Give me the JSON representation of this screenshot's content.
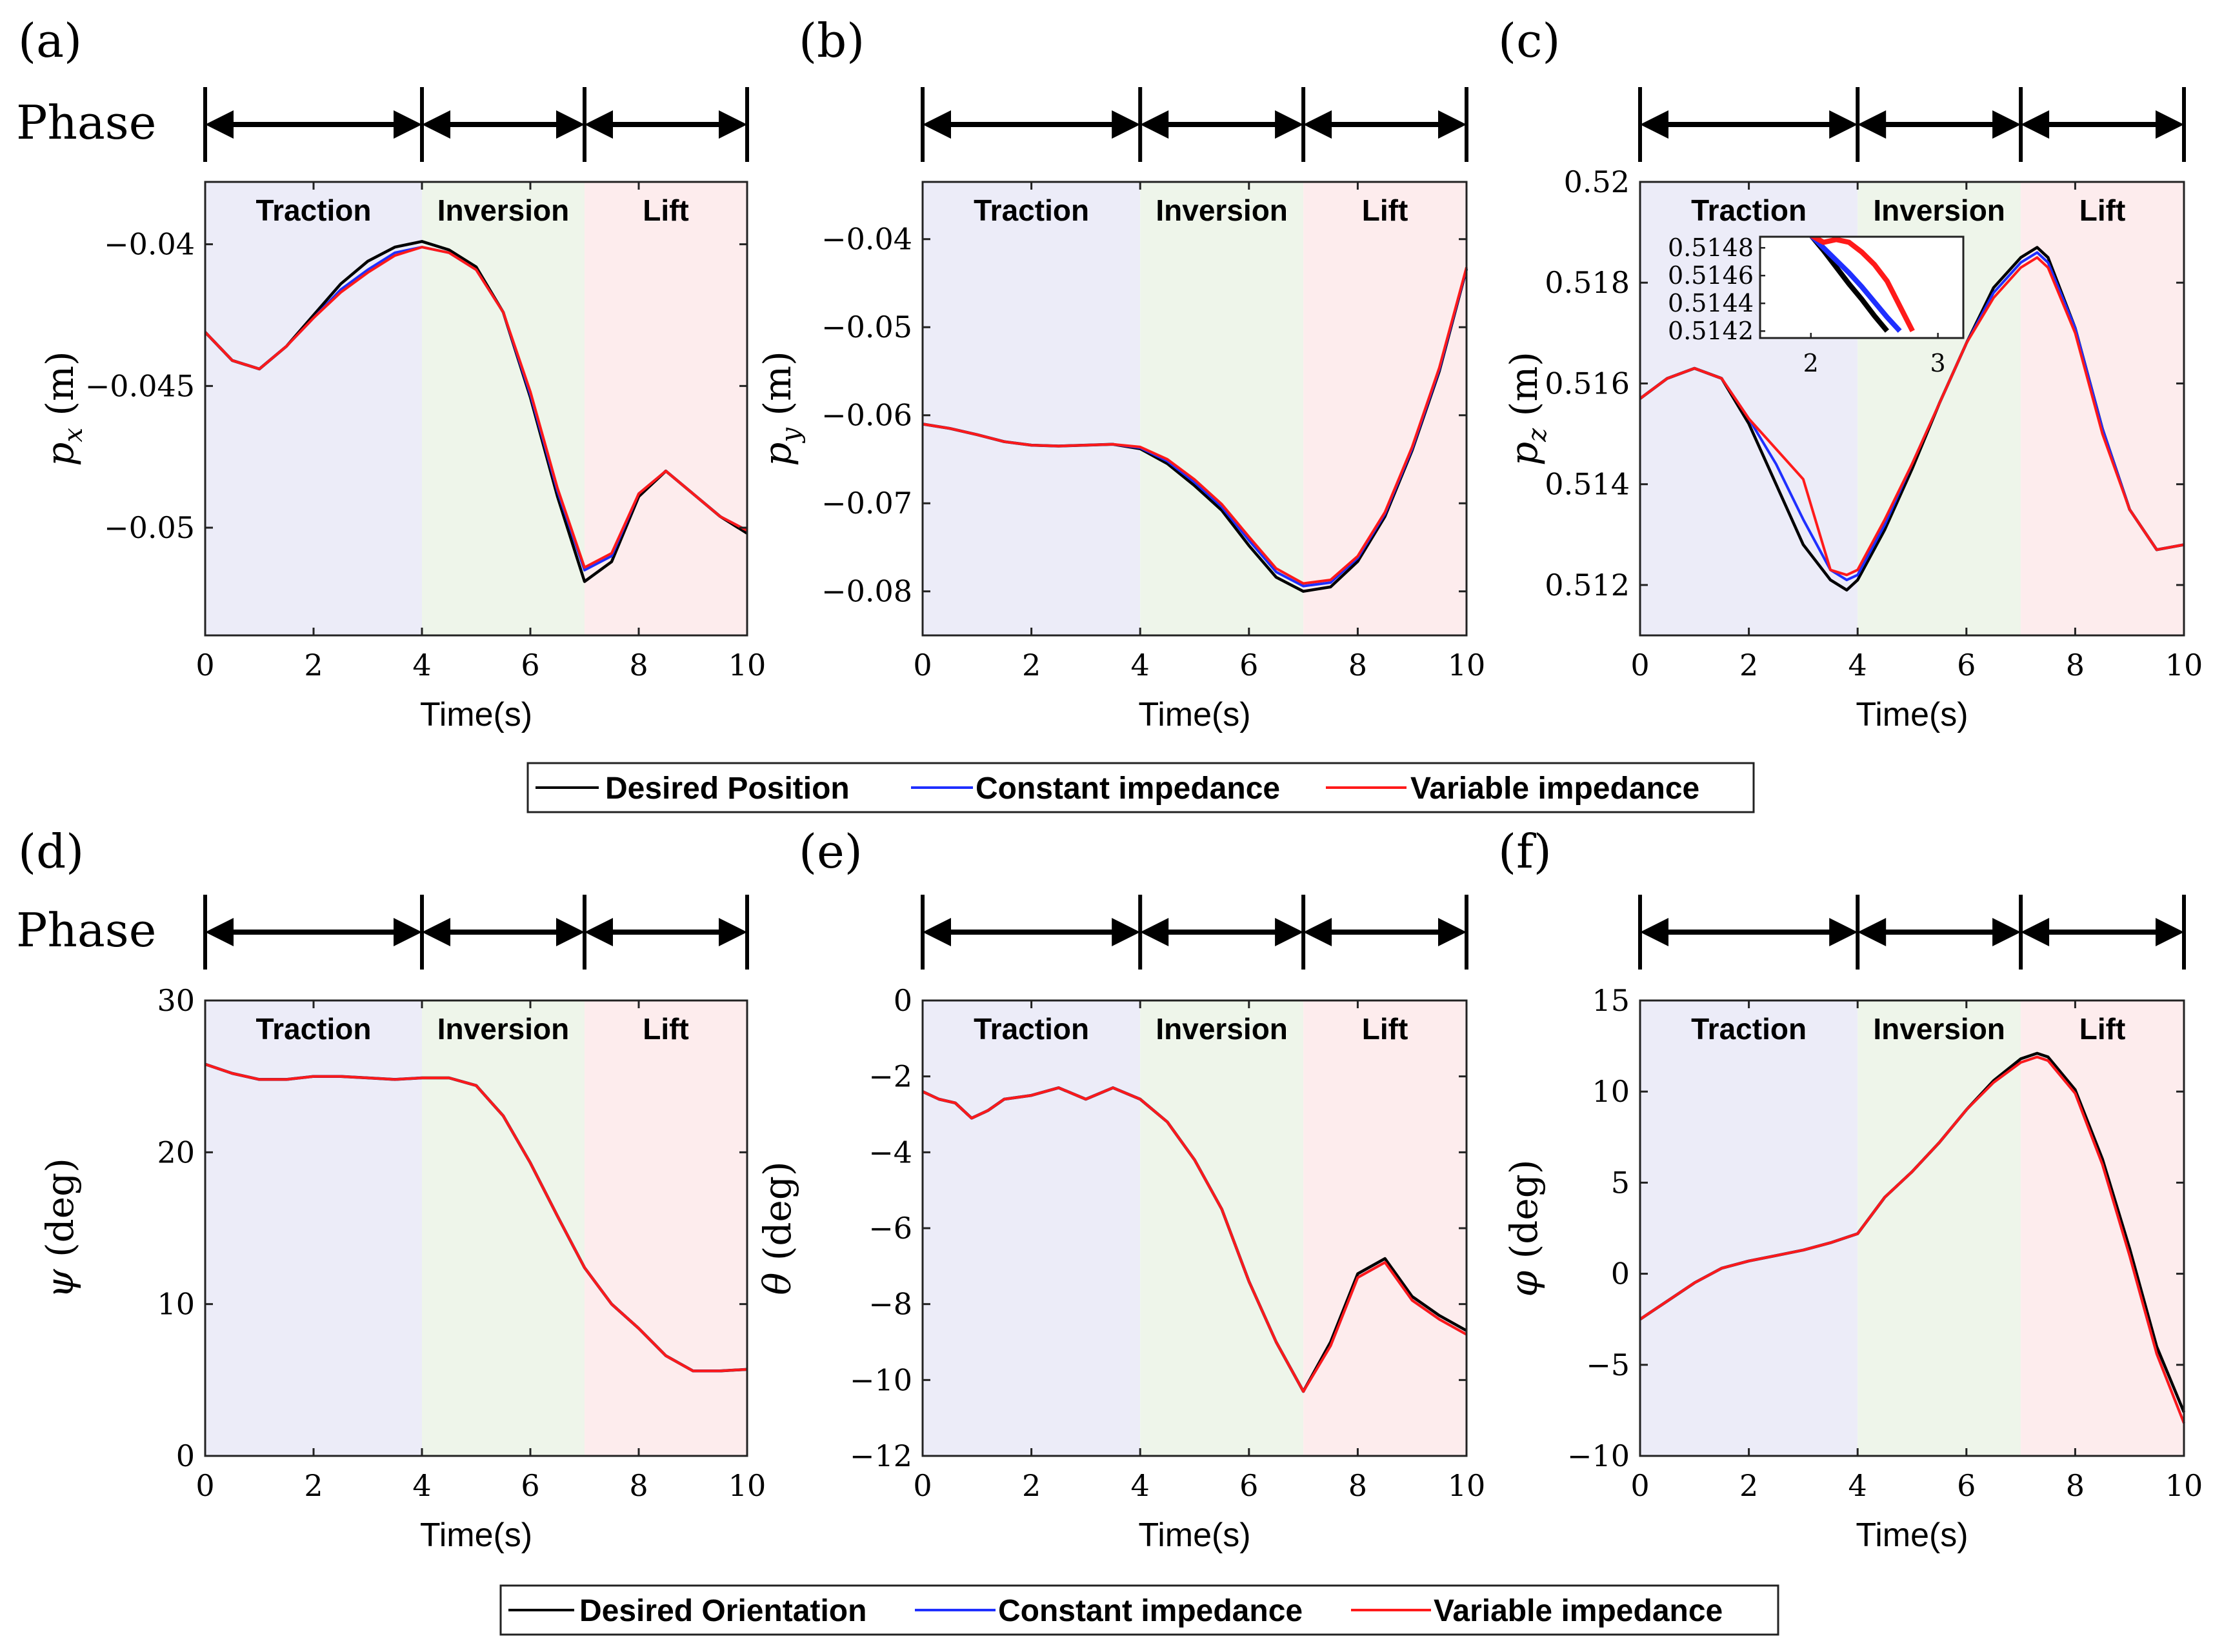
{
  "phase_label": "Phase",
  "colors": {
    "desired": "#000000",
    "constant": "#1f2fff",
    "variable": "#ff1a1a",
    "traction_bg": "#ececf8",
    "inversion_bg": "#eef5ea",
    "lift_bg": "#fdeced"
  },
  "phases": [
    {
      "name": "Traction",
      "start": 0,
      "end": 4
    },
    {
      "name": "Inversion",
      "start": 4,
      "end": 7
    },
    {
      "name": "Lift",
      "start": 7,
      "end": 10
    }
  ],
  "legends": {
    "top": [
      "Desired Position",
      "Constant impedance",
      "Variable impedance"
    ],
    "bottom": [
      "Desired Orientation",
      "Constant impedance",
      "Variable impedance"
    ]
  },
  "chart_data": [
    {
      "id": "a",
      "panel_label": "(a)",
      "type": "line",
      "xlabel": "Time(s)",
      "ylabel": "p_x (m)",
      "xlim": [
        0,
        10
      ],
      "ylim": [
        -0.0538,
        -0.0378
      ],
      "xticks": [
        "0",
        "2",
        "4",
        "6",
        "8",
        "10"
      ],
      "xtick_values": [
        0,
        2,
        4,
        6,
        8,
        10
      ],
      "yticks": [
        "−0.05",
        "−0.045",
        "−0.04"
      ],
      "ytick_values": [
        -0.05,
        -0.045,
        -0.04
      ],
      "phase_labels": [
        "Traction",
        "Inversion",
        "Lift"
      ],
      "x": [
        0,
        0.5,
        1,
        1.5,
        2,
        2.5,
        3,
        3.5,
        4,
        4.5,
        5,
        5.5,
        6,
        6.5,
        7,
        7.5,
        8,
        8.5,
        9,
        9.5,
        10
      ],
      "series": [
        {
          "name": "Desired Position",
          "color": "#000000",
          "values": [
            -0.0431,
            -0.0441,
            -0.0444,
            -0.0436,
            -0.0425,
            -0.0414,
            -0.0406,
            -0.0401,
            -0.0399,
            -0.0402,
            -0.0408,
            -0.0424,
            -0.0454,
            -0.0489,
            -0.0519,
            -0.0512,
            -0.0489,
            -0.048,
            -0.0488,
            -0.0496,
            -0.0502
          ]
        },
        {
          "name": "Constant impedance",
          "color": "#1f2fff",
          "values": [
            -0.0431,
            -0.0441,
            -0.0444,
            -0.0436,
            -0.0426,
            -0.0416,
            -0.0409,
            -0.0403,
            -0.0401,
            -0.0403,
            -0.0409,
            -0.0424,
            -0.0453,
            -0.0487,
            -0.0515,
            -0.051,
            -0.0488,
            -0.048,
            -0.0488,
            -0.0496,
            -0.0501
          ]
        },
        {
          "name": "Variable impedance",
          "color": "#ff1a1a",
          "values": [
            -0.0431,
            -0.0441,
            -0.0444,
            -0.0436,
            -0.0426,
            -0.0417,
            -0.041,
            -0.0404,
            -0.0401,
            -0.0403,
            -0.0409,
            -0.0424,
            -0.0452,
            -0.0486,
            -0.0514,
            -0.0509,
            -0.0488,
            -0.048,
            -0.0488,
            -0.0496,
            -0.0501
          ]
        }
      ]
    },
    {
      "id": "b",
      "panel_label": "(b)",
      "type": "line",
      "xlabel": "Time(s)",
      "ylabel": "p_y (m)",
      "xlim": [
        0,
        10
      ],
      "ylim": [
        -0.085,
        -0.0335
      ],
      "xticks": [
        "0",
        "2",
        "4",
        "6",
        "8",
        "10"
      ],
      "xtick_values": [
        0,
        2,
        4,
        6,
        8,
        10
      ],
      "yticks": [
        "−0.08",
        "−0.07",
        "−0.06",
        "−0.05",
        "−0.04"
      ],
      "ytick_values": [
        -0.08,
        -0.07,
        -0.06,
        -0.05,
        -0.04
      ],
      "phase_labels": [
        "Traction",
        "Inversion",
        "Lift"
      ],
      "x": [
        0,
        0.5,
        1,
        1.5,
        2,
        2.5,
        3,
        3.5,
        4,
        4.5,
        5,
        5.5,
        6,
        6.5,
        7,
        7.5,
        8,
        8.5,
        9,
        9.5,
        10
      ],
      "series": [
        {
          "name": "Desired Position",
          "color": "#000000",
          "values": [
            -0.061,
            -0.0615,
            -0.0622,
            -0.063,
            -0.0634,
            -0.0635,
            -0.0634,
            -0.0633,
            -0.0638,
            -0.0655,
            -0.068,
            -0.0708,
            -0.0748,
            -0.0784,
            -0.08,
            -0.0795,
            -0.0766,
            -0.0715,
            -0.064,
            -0.055,
            -0.0434
          ]
        },
        {
          "name": "Constant impedance",
          "color": "#1f2fff",
          "values": [
            -0.061,
            -0.0615,
            -0.0622,
            -0.063,
            -0.0634,
            -0.0635,
            -0.0634,
            -0.0633,
            -0.0637,
            -0.0652,
            -0.0676,
            -0.0704,
            -0.0742,
            -0.0778,
            -0.0794,
            -0.079,
            -0.0762,
            -0.0712,
            -0.0638,
            -0.0548,
            -0.0433
          ]
        },
        {
          "name": "Variable impedance",
          "color": "#ff1a1a",
          "values": [
            -0.061,
            -0.0615,
            -0.0622,
            -0.063,
            -0.0634,
            -0.0635,
            -0.0634,
            -0.0633,
            -0.0636,
            -0.065,
            -0.0673,
            -0.0701,
            -0.0738,
            -0.0774,
            -0.0791,
            -0.0787,
            -0.076,
            -0.071,
            -0.0636,
            -0.0546,
            -0.0432
          ]
        }
      ]
    },
    {
      "id": "c",
      "panel_label": "(c)",
      "type": "line",
      "xlabel": "Time(s)",
      "ylabel": "p_z (m)",
      "xlim": [
        0,
        10
      ],
      "ylim": [
        0.511,
        0.52
      ],
      "xticks": [
        "0",
        "2",
        "4",
        "6",
        "8",
        "10"
      ],
      "xtick_values": [
        0,
        2,
        4,
        6,
        8,
        10
      ],
      "yticks": [
        "0.512",
        "0.514",
        "0.516",
        "0.518",
        "0.52"
      ],
      "ytick_values": [
        0.512,
        0.514,
        0.516,
        0.518,
        0.52
      ],
      "phase_labels": [
        "Traction",
        "Inversion",
        "Lift"
      ],
      "x": [
        0,
        0.5,
        1,
        1.5,
        2,
        2.5,
        3,
        3.5,
        3.8,
        4,
        4.5,
        5,
        5.5,
        6,
        6.5,
        7,
        7.3,
        7.5,
        8,
        8.5,
        9,
        9.5,
        10
      ],
      "series": [
        {
          "name": "Desired Position",
          "color": "#000000",
          "values": [
            0.5157,
            0.5161,
            0.5163,
            0.5161,
            0.5152,
            0.514,
            0.5128,
            0.5121,
            0.5119,
            0.5121,
            0.5131,
            0.5143,
            0.5156,
            0.5168,
            0.5179,
            0.5185,
            0.5187,
            0.5185,
            0.5171,
            0.5151,
            0.5135,
            0.5127,
            0.5128
          ]
        },
        {
          "name": "Constant impedance",
          "color": "#1f2fff",
          "values": [
            0.5157,
            0.5161,
            0.5163,
            0.5161,
            0.5153,
            0.5144,
            0.5133,
            0.5123,
            0.5121,
            0.5122,
            0.5132,
            0.5144,
            0.5156,
            0.5168,
            0.5178,
            0.5184,
            0.5186,
            0.5184,
            0.5171,
            0.5151,
            0.5135,
            0.5127,
            0.5128
          ]
        },
        {
          "name": "Variable impedance",
          "color": "#ff1a1a",
          "values": [
            0.5157,
            0.5161,
            0.5163,
            0.5161,
            0.5153,
            0.5147,
            0.5141,
            0.5123,
            0.5122,
            0.5123,
            0.5133,
            0.5144,
            0.5156,
            0.5168,
            0.5177,
            0.5183,
            0.5185,
            0.5183,
            0.517,
            0.515,
            0.5135,
            0.5127,
            0.5128
          ]
        }
      ],
      "inset": {
        "xlim": [
          1.6,
          3.2
        ],
        "ylim": [
          0.51415,
          0.51488
        ],
        "xticks": [
          "2",
          "3"
        ],
        "xtick_values": [
          2,
          3
        ],
        "yticks": [
          "0.5142",
          "0.5144",
          "0.5146",
          "0.5148"
        ],
        "ytick_values": [
          0.5142,
          0.5144,
          0.5146,
          0.5148
        ],
        "x": [
          2,
          2.1,
          2.2,
          2.3,
          2.4,
          2.5,
          2.6,
          2.7,
          2.8
        ],
        "series": [
          {
            "name": "Desired Position",
            "color": "#000000",
            "values": [
              0.51489,
              0.51478,
              0.51466,
              0.51454,
              0.51443,
              0.51431,
              0.5142,
              null,
              null
            ]
          },
          {
            "name": "Constant impedance",
            "color": "#1f2fff",
            "values": [
              0.51489,
              0.5148,
              0.51471,
              0.51462,
              0.51452,
              0.51441,
              0.5143,
              0.5142,
              null
            ]
          },
          {
            "name": "Variable impedance",
            "color": "#ff1a1a",
            "values": [
              0.51489,
              0.51484,
              0.51486,
              0.51484,
              0.51477,
              0.51468,
              0.51456,
              0.51438,
              0.5142
            ]
          }
        ]
      }
    },
    {
      "id": "d",
      "panel_label": "(d)",
      "type": "line",
      "xlabel": "Time(s)",
      "ylabel": "ψ (deg)",
      "xlim": [
        0,
        10
      ],
      "ylim": [
        0,
        30
      ],
      "xticks": [
        "0",
        "2",
        "4",
        "6",
        "8",
        "10"
      ],
      "xtick_values": [
        0,
        2,
        4,
        6,
        8,
        10
      ],
      "yticks": [
        "0",
        "10",
        "20",
        "30"
      ],
      "ytick_values": [
        0,
        10,
        20,
        30
      ],
      "phase_labels": [
        "Traction",
        "Inversion",
        "Lift"
      ],
      "x": [
        0,
        0.5,
        1,
        1.5,
        2,
        2.5,
        3,
        3.5,
        4,
        4.5,
        5,
        5.5,
        6,
        6.5,
        7,
        7.5,
        8,
        8.5,
        9,
        9.5,
        10
      ],
      "series": [
        {
          "name": "Desired Orientation",
          "color": "#000000",
          "values": [
            25.8,
            25.2,
            24.8,
            24.8,
            25.0,
            25.0,
            24.9,
            24.8,
            24.9,
            24.9,
            24.4,
            22.4,
            19.3,
            15.8,
            12.4,
            10.0,
            8.4,
            6.6,
            5.6,
            5.6,
            5.7
          ]
        },
        {
          "name": "Constant impedance",
          "color": "#1f2fff",
          "values": [
            25.8,
            25.2,
            24.8,
            24.8,
            25.0,
            25.0,
            24.9,
            24.8,
            24.9,
            24.9,
            24.4,
            22.4,
            19.3,
            15.8,
            12.4,
            10.0,
            8.4,
            6.6,
            5.6,
            5.6,
            5.7
          ]
        },
        {
          "name": "Variable impedance",
          "color": "#ff1a1a",
          "values": [
            25.8,
            25.2,
            24.8,
            24.8,
            25.0,
            25.0,
            24.9,
            24.8,
            24.9,
            24.9,
            24.4,
            22.4,
            19.3,
            15.8,
            12.4,
            10.0,
            8.4,
            6.6,
            5.6,
            5.6,
            5.7
          ]
        }
      ]
    },
    {
      "id": "e",
      "panel_label": "(e)",
      "type": "line",
      "xlabel": "Time(s)",
      "ylabel": "θ (deg)",
      "xlim": [
        0,
        10
      ],
      "ylim": [
        -12,
        0
      ],
      "xticks": [
        "0",
        "2",
        "4",
        "6",
        "8",
        "10"
      ],
      "xtick_values": [
        0,
        2,
        4,
        6,
        8,
        10
      ],
      "yticks": [
        "−12",
        "−10",
        "−8",
        "−6",
        "−4",
        "−2",
        "0"
      ],
      "ytick_values": [
        -12,
        -10,
        -8,
        -6,
        -4,
        -2,
        0
      ],
      "phase_labels": [
        "Traction",
        "Inversion",
        "Lift"
      ],
      "x": [
        0,
        0.3,
        0.6,
        0.9,
        1.2,
        1.5,
        2,
        2.5,
        3,
        3.5,
        4,
        4.5,
        5,
        5.5,
        6,
        6.5,
        7,
        7.5,
        8,
        8.5,
        9,
        9.5,
        10
      ],
      "series": [
        {
          "name": "Desired Orientation",
          "color": "#000000",
          "values": [
            -2.4,
            -2.6,
            -2.7,
            -3.1,
            -2.9,
            -2.6,
            -2.5,
            -2.3,
            -2.6,
            -2.3,
            -2.6,
            -3.2,
            -4.2,
            -5.5,
            -7.4,
            -9.0,
            -10.3,
            -9.0,
            -7.2,
            -6.8,
            -7.8,
            -8.3,
            -8.7
          ]
        },
        {
          "name": "Constant impedance",
          "color": "#1f2fff",
          "values": [
            -2.4,
            -2.6,
            -2.7,
            -3.1,
            -2.9,
            -2.6,
            -2.5,
            -2.3,
            -2.6,
            -2.3,
            -2.6,
            -3.2,
            -4.2,
            -5.5,
            -7.4,
            -9.0,
            -10.3,
            -9.1,
            -7.3,
            -6.9,
            -7.9,
            -8.4,
            -8.8
          ]
        },
        {
          "name": "Variable impedance",
          "color": "#ff1a1a",
          "values": [
            -2.4,
            -2.6,
            -2.7,
            -3.1,
            -2.9,
            -2.6,
            -2.5,
            -2.3,
            -2.6,
            -2.3,
            -2.6,
            -3.2,
            -4.2,
            -5.5,
            -7.4,
            -9.0,
            -10.3,
            -9.1,
            -7.3,
            -6.9,
            -7.9,
            -8.4,
            -8.8
          ]
        }
      ]
    },
    {
      "id": "f",
      "panel_label": "(f)",
      "type": "line",
      "xlabel": "Time(s)",
      "ylabel": "φ (deg)",
      "xlim": [
        0,
        10
      ],
      "ylim": [
        -10,
        15
      ],
      "xticks": [
        "0",
        "2",
        "4",
        "6",
        "8",
        "10"
      ],
      "xtick_values": [
        0,
        2,
        4,
        6,
        8,
        10
      ],
      "yticks": [
        "−10",
        "−5",
        "0",
        "5",
        "10",
        "15"
      ],
      "ytick_values": [
        -10,
        -5,
        0,
        5,
        10,
        15
      ],
      "phase_labels": [
        "Traction",
        "Inversion",
        "Lift"
      ],
      "x": [
        0,
        0.5,
        1,
        1.5,
        2,
        2.5,
        3,
        3.5,
        4,
        4.5,
        5,
        5.5,
        6,
        6.5,
        7,
        7.3,
        7.5,
        8,
        8.5,
        9,
        9.5,
        10
      ],
      "series": [
        {
          "name": "Desired Orientation",
          "color": "#000000",
          "values": [
            -2.5,
            -1.5,
            -0.5,
            0.3,
            0.7,
            1.0,
            1.3,
            1.7,
            2.2,
            4.2,
            5.6,
            7.2,
            9.0,
            10.6,
            11.8,
            12.1,
            11.9,
            10.1,
            6.3,
            1.4,
            -4.0,
            -7.6
          ]
        },
        {
          "name": "Constant impedance",
          "color": "#1f2fff",
          "values": [
            -2.5,
            -1.5,
            -0.5,
            0.3,
            0.7,
            1.0,
            1.3,
            1.7,
            2.2,
            4.2,
            5.6,
            7.2,
            9.0,
            10.5,
            11.6,
            11.9,
            11.7,
            9.9,
            6.0,
            1.0,
            -4.4,
            -8.2
          ]
        },
        {
          "name": "Variable impedance",
          "color": "#ff1a1a",
          "values": [
            -2.5,
            -1.5,
            -0.5,
            0.3,
            0.7,
            1.0,
            1.3,
            1.7,
            2.2,
            4.2,
            5.6,
            7.2,
            9.0,
            10.5,
            11.6,
            11.9,
            11.7,
            9.9,
            6.0,
            1.0,
            -4.4,
            -8.2
          ]
        }
      ]
    }
  ]
}
